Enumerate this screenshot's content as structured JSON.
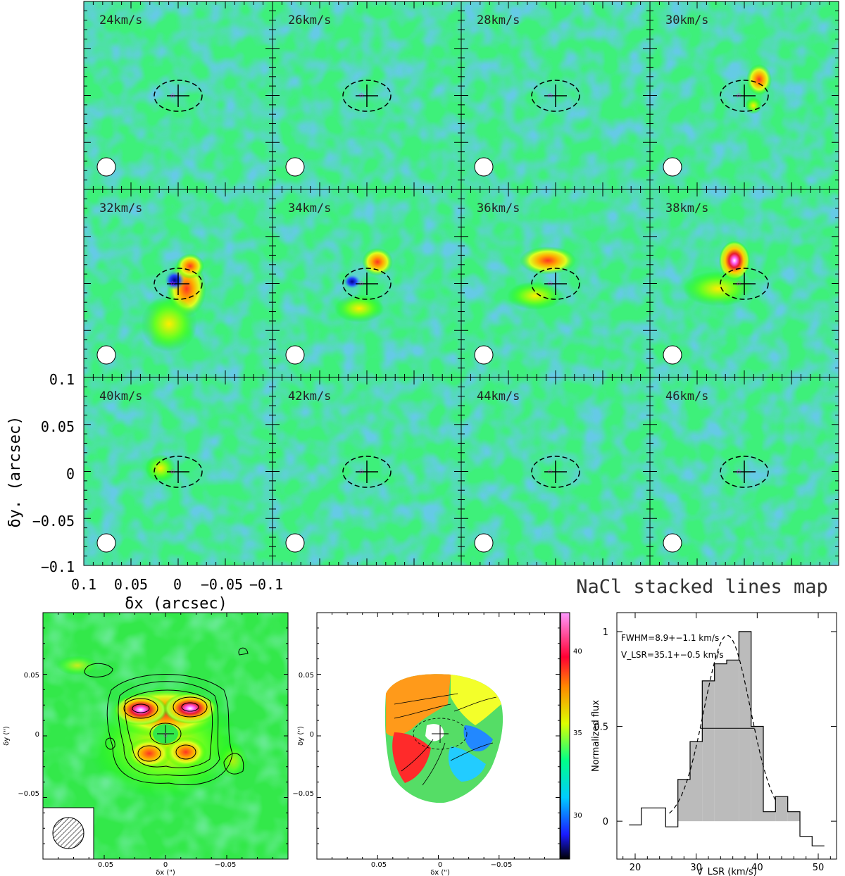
{
  "channel_maps": {
    "velocities": [
      "24km/s",
      "26km/s",
      "28km/s",
      "30km/s",
      "32km/s",
      "34km/s",
      "36km/s",
      "38km/s",
      "40km/s",
      "42km/s",
      "44km/s",
      "46km/s"
    ],
    "ylabel": "δy. (arcsec)",
    "xlabel": "δx (arcsec)",
    "yticks": [
      "0.1",
      "0.05",
      "0",
      "−0.05",
      "−0.1"
    ],
    "xticks": [
      "0.1",
      "0.05",
      "0",
      "−0.05",
      "−0.1"
    ],
    "title": "NaCl stacked lines map"
  },
  "moment0": {
    "ylabel": "δy (\")",
    "xlabel": "δx (\")",
    "yticks": [
      "0.05",
      "0",
      "−0.05"
    ],
    "xticks": [
      "0.05",
      "0",
      "−0.05"
    ]
  },
  "moment1": {
    "ylabel": "δy (\")",
    "xlabel": "δx (\")",
    "yticks": [
      "0.05",
      "0",
      "−0.05"
    ],
    "xticks": [
      "0.05",
      "0",
      "−0.05"
    ],
    "colorbar_ticks": [
      "40",
      "35",
      "30"
    ],
    "colorbar_range": [
      27,
      42
    ]
  },
  "chart_data": {
    "type": "bar",
    "xlabel": "V_LSR (km/s)",
    "ylabel": "Normalized flux",
    "annotations": [
      "FWHM=8.9+−1.1 km/s",
      "V_LSR=35.1+−0.5 km/s"
    ],
    "xlim": [
      17,
      53
    ],
    "ylim": [
      -0.2,
      1.1
    ],
    "xticks": [
      20,
      30,
      40,
      50
    ],
    "yticks": [
      0,
      0.5,
      1
    ],
    "ytick_labels": [
      "0",
      "0.5",
      "1"
    ],
    "x": [
      20,
      22,
      24,
      26,
      28,
      30,
      32,
      34,
      36,
      38,
      40,
      42,
      44,
      46,
      48,
      50
    ],
    "values": [
      -0.02,
      0.07,
      0.07,
      -0.03,
      0.22,
      0.42,
      0.74,
      0.83,
      0.85,
      1.0,
      0.5,
      0.05,
      0.13,
      0.05,
      -0.08,
      -0.13
    ],
    "fit": {
      "fwhm": 8.9,
      "vlsr": 35.1,
      "peak": 0.98
    }
  }
}
